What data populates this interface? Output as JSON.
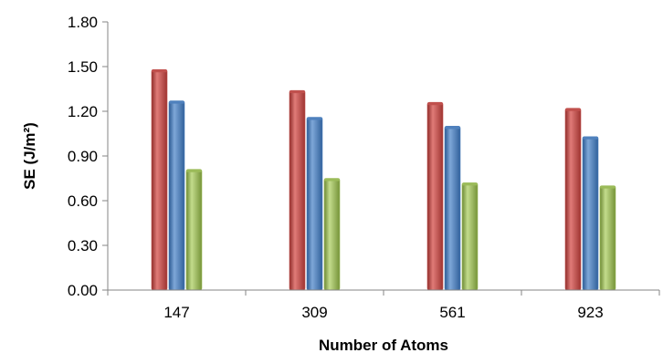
{
  "chart_data": {
    "type": "bar",
    "title": "",
    "xlabel": "Number of Atoms",
    "ylabel": "SE (J/m²)",
    "categories": [
      "147",
      "309",
      "561",
      "923"
    ],
    "series": [
      {
        "values": [
          1.48,
          1.34,
          1.26,
          1.22
        ],
        "color": "#c0504d"
      },
      {
        "values": [
          1.27,
          1.16,
          1.1,
          1.03
        ],
        "color": "#4f81bd"
      },
      {
        "values": [
          0.81,
          0.75,
          0.72,
          0.7
        ],
        "color": "#9bbb59"
      }
    ],
    "ylim": [
      0,
      1.8
    ],
    "yticks": [
      "0.00",
      "0.30",
      "0.60",
      "0.90",
      "1.20",
      "1.50",
      "1.80"
    ],
    "grid": false,
    "legend": "none"
  }
}
